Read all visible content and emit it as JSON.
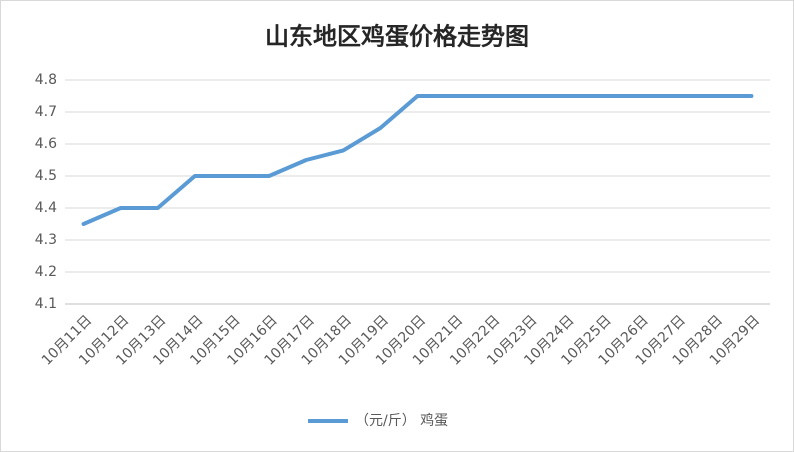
{
  "chart_data": {
    "type": "line",
    "title": "山东地区鸡蛋价格走势图",
    "categories": [
      "10月11日",
      "10月12日",
      "10月13日",
      "10月14日",
      "10月15日",
      "10月16日",
      "10月17日",
      "10月18日",
      "10月19日",
      "10月20日",
      "10月21日",
      "10月22日",
      "10月23日",
      "10月24日",
      "10月25日",
      "10月26日",
      "10月27日",
      "10月28日",
      "10月29日"
    ],
    "series": [
      {
        "name": "（元/斤） 鸡蛋",
        "color": "#5b9bd5",
        "values": [
          4.35,
          4.4,
          4.4,
          4.5,
          4.5,
          4.5,
          4.55,
          4.58,
          4.65,
          4.75,
          4.75,
          4.75,
          4.75,
          4.75,
          4.75,
          4.75,
          4.75,
          4.75,
          4.75
        ]
      }
    ],
    "ylim": [
      4.1,
      4.8
    ],
    "yticks": [
      4.1,
      4.2,
      4.3,
      4.4,
      4.5,
      4.6,
      4.7,
      4.8
    ],
    "grid": true,
    "legend": "bottom"
  }
}
